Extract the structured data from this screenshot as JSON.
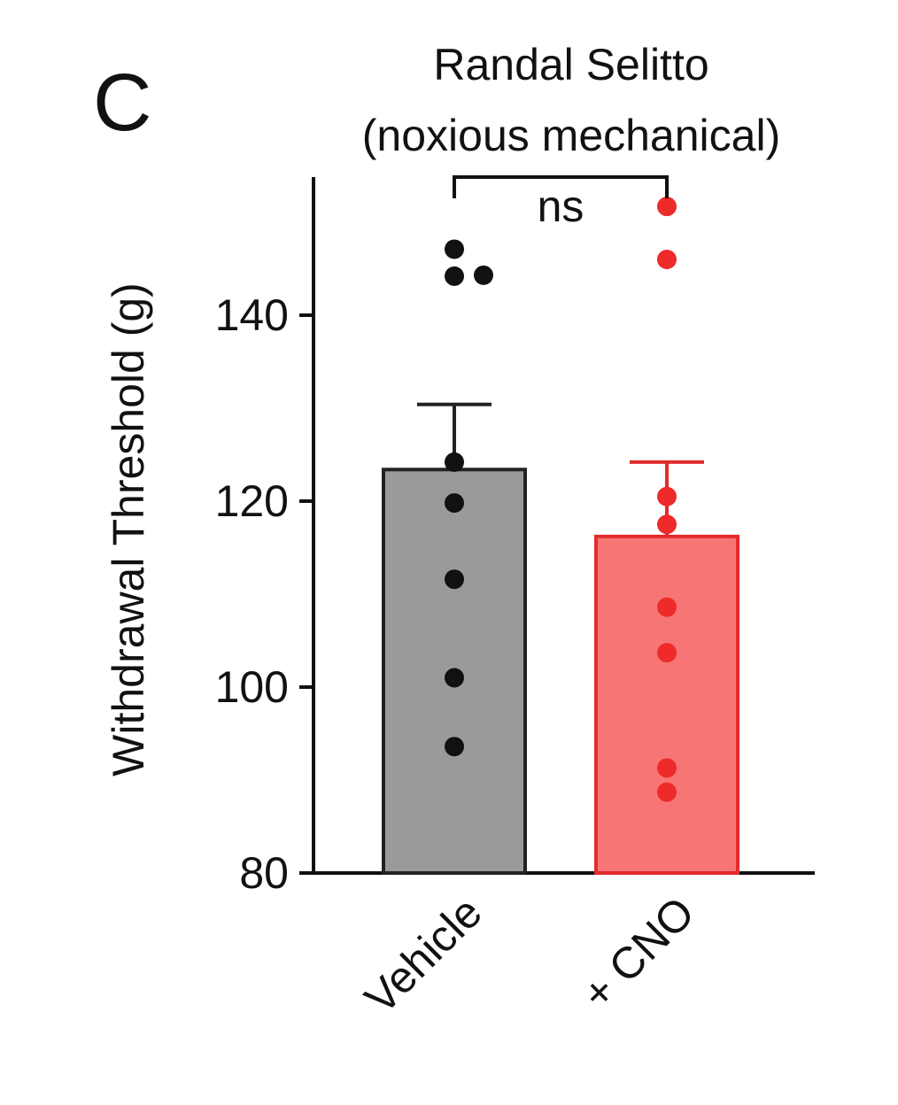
{
  "panel_letter": "C",
  "chart_data": {
    "type": "bar",
    "title_lines": [
      "Randal Selitto",
      "(noxious mechanical)"
    ],
    "xlabel": "",
    "ylabel": "Withdrawal Threshold (g)",
    "ylim": [
      80,
      150
    ],
    "yticks": [
      80,
      100,
      120,
      140
    ],
    "yticklabels": [
      "80",
      "100",
      "120",
      "140"
    ],
    "categories": [
      "Vehicle",
      "+ CNO"
    ],
    "series": [
      {
        "values": [
          123.4,
          116.2
        ],
        "sem": [
          7.0,
          8.0
        ],
        "fills": [
          "#9a999c",
          "#f77575"
        ],
        "edges": [
          "#222222",
          "#e32b2b"
        ],
        "points": [
          [
            147.1,
            144.2,
            144.3,
            124.2,
            119.8,
            111.6,
            101.0,
            93.6
          ],
          [
            151.7,
            146.0,
            120.5,
            117.5,
            108.6,
            103.7,
            91.3,
            88.7
          ]
        ],
        "point_colors": [
          "#111111",
          "#ee2a2a"
        ]
      }
    ],
    "significance": {
      "between": [
        "Vehicle",
        "+ CNO"
      ],
      "label": "ns"
    },
    "grid": false,
    "legend": "none"
  }
}
